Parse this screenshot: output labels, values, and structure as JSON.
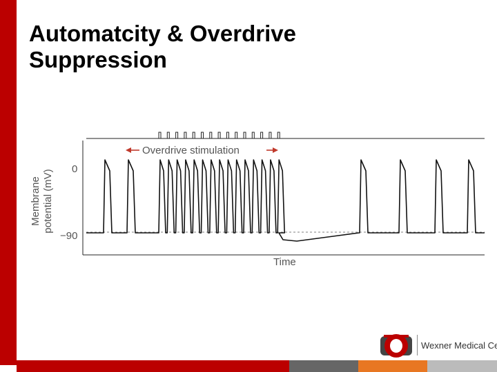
{
  "slide": {
    "title": "Automatcity & Overdrive Suppression",
    "colors": {
      "accent": "#bb0000",
      "gray": "#666666",
      "orange": "#e87722",
      "light_gray": "#bbbbbb"
    }
  },
  "diagram": {
    "stimulus_label": "Overdrive stimulation",
    "y_axis_label_line1": "Membrane",
    "y_axis_label_line2": "potential (mV)",
    "y_tick_top": "0",
    "y_tick_bottom": "−90",
    "x_axis_label": "Time"
  },
  "logo": {
    "text": "Wexner Medical Center",
    "letter": "O",
    "icon": "block-o-logo-icon"
  }
}
